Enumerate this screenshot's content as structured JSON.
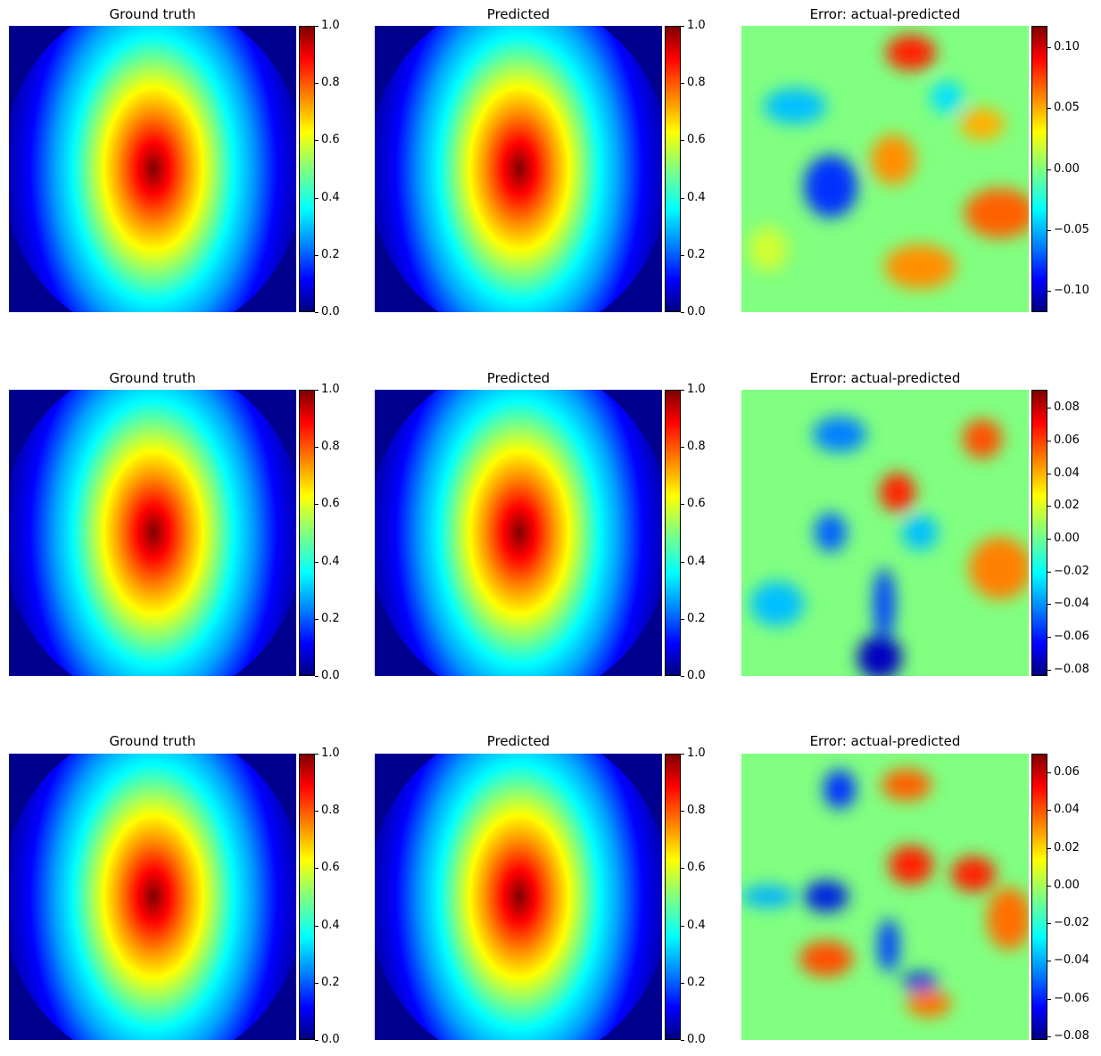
{
  "chart_data": [
    {
      "type": "heatmap",
      "title": "Ground truth",
      "colormap": "jet",
      "colorbar_range": [
        0,
        1
      ],
      "colorbar_ticks": [
        "0.0",
        "0.2",
        "0.4",
        "0.6",
        "0.8",
        "1.0"
      ],
      "colorbar_values": [
        0,
        0.2,
        0.4,
        0.6,
        0.8,
        1.0
      ]
    },
    {
      "type": "heatmap",
      "title": "Predicted",
      "colormap": "jet",
      "colorbar_range": [
        0,
        1
      ],
      "colorbar_ticks": [
        "0.0",
        "0.2",
        "0.4",
        "0.6",
        "0.8",
        "1.0"
      ],
      "colorbar_values": [
        0,
        0.2,
        0.4,
        0.6,
        0.8,
        1.0
      ]
    },
    {
      "type": "heatmap",
      "title": "Error: actual-predicted",
      "colormap": "jet",
      "colorbar_range": [
        -0.118,
        0.118
      ],
      "colorbar_ticks": [
        "−0.10",
        "−0.05",
        "0.00",
        "0.05",
        "0.10"
      ],
      "colorbar_values": [
        -0.1,
        -0.05,
        0.0,
        0.05,
        0.1
      ]
    },
    {
      "type": "heatmap",
      "title": "Ground truth",
      "colormap": "jet",
      "colorbar_range": [
        0,
        1
      ],
      "colorbar_ticks": [
        "0.0",
        "0.2",
        "0.4",
        "0.6",
        "0.8",
        "1.0"
      ],
      "colorbar_values": [
        0,
        0.2,
        0.4,
        0.6,
        0.8,
        1.0
      ]
    },
    {
      "type": "heatmap",
      "title": "Predicted",
      "colormap": "jet",
      "colorbar_range": [
        0,
        1
      ],
      "colorbar_ticks": [
        "0.0",
        "0.2",
        "0.4",
        "0.6",
        "0.8",
        "1.0"
      ],
      "colorbar_values": [
        0,
        0.2,
        0.4,
        0.6,
        0.8,
        1.0
      ]
    },
    {
      "type": "heatmap",
      "title": "Error: actual-predicted",
      "colormap": "jet",
      "colorbar_range": [
        -0.084,
        0.091
      ],
      "colorbar_ticks": [
        "−0.08",
        "−0.06",
        "−0.04",
        "−0.02",
        "0.00",
        "0.02",
        "0.04",
        "0.06",
        "0.08"
      ],
      "colorbar_values": [
        -0.08,
        -0.06,
        -0.04,
        -0.02,
        0.0,
        0.02,
        0.04,
        0.06,
        0.08
      ]
    },
    {
      "type": "heatmap",
      "title": "Ground truth",
      "colormap": "jet",
      "colorbar_range": [
        0,
        1
      ],
      "colorbar_ticks": [
        "0.0",
        "0.2",
        "0.4",
        "0.6",
        "0.8",
        "1.0"
      ],
      "colorbar_values": [
        0,
        0.2,
        0.4,
        0.6,
        0.8,
        1.0
      ]
    },
    {
      "type": "heatmap",
      "title": "Predicted",
      "colormap": "jet",
      "colorbar_range": [
        0,
        1
      ],
      "colorbar_ticks": [
        "0.0",
        "0.2",
        "0.4",
        "0.6",
        "0.8",
        "1.0"
      ],
      "colorbar_values": [
        0,
        0.2,
        0.4,
        0.6,
        0.8,
        1.0
      ]
    },
    {
      "type": "heatmap",
      "title": "Error: actual-predicted",
      "colormap": "jet",
      "colorbar_range": [
        -0.082,
        0.07
      ],
      "colorbar_ticks": [
        "−0.08",
        "−0.06",
        "−0.04",
        "−0.02",
        "0.00",
        "0.02",
        "0.04",
        "0.06"
      ],
      "colorbar_values": [
        -0.08,
        -0.06,
        -0.04,
        -0.02,
        0.0,
        0.02,
        0.04,
        0.06
      ]
    }
  ]
}
